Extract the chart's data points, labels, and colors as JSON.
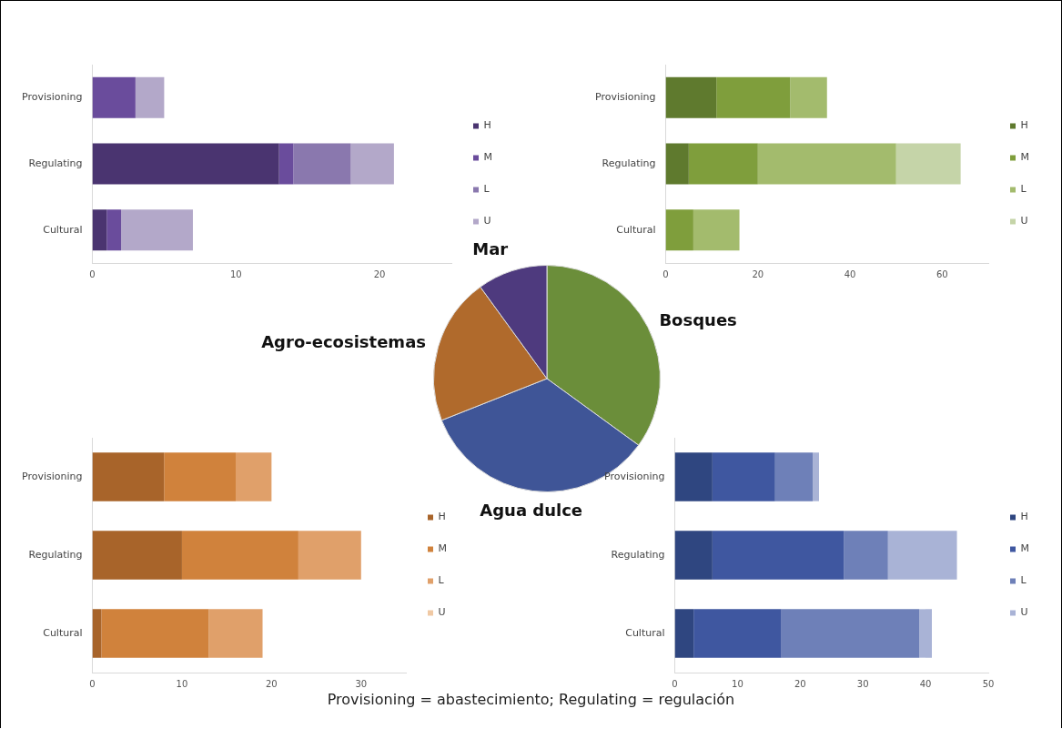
{
  "chart_data": [
    {
      "type": "pie",
      "categories": [
        "Bosques",
        "Agua dulce",
        "Agro-ecosistemas",
        "Mar"
      ],
      "values": [
        35,
        34,
        21,
        10
      ],
      "colors": [
        "#6b8e3a",
        "#3f5597",
        "#b06a2c",
        "#4e3a7e"
      ],
      "annotations": [
        "Provisioning = abastecimiento; Regulating = regulación"
      ]
    },
    {
      "type": "bar",
      "orientation": "horizontal",
      "stacked": true,
      "categories": [
        "Provisioning",
        "Regulating",
        "Cultural"
      ],
      "series": [
        {
          "name": "H",
          "color": "#4a3470",
          "values": [
            0,
            13,
            1
          ]
        },
        {
          "name": "M",
          "color": "#6a4c9c",
          "values": [
            3,
            1,
            1
          ]
        },
        {
          "name": "L",
          "color": "#8a78ae",
          "values": [
            0,
            4,
            0
          ]
        },
        {
          "name": "U",
          "color": "#b3a8c9",
          "values": [
            2,
            3,
            5
          ]
        }
      ],
      "xlim": [
        0,
        25
      ],
      "xticks": [
        0,
        10,
        20
      ],
      "grid": false,
      "legend": "right"
    },
    {
      "type": "bar",
      "orientation": "horizontal",
      "stacked": true,
      "categories": [
        "Provisioning",
        "Regulating",
        "Cultural"
      ],
      "series": [
        {
          "name": "H",
          "color": "#5f7a2e",
          "values": [
            11,
            5,
            0
          ]
        },
        {
          "name": "M",
          "color": "#7f9e3c",
          "values": [
            16,
            15,
            6
          ]
        },
        {
          "name": "L",
          "color": "#a3bb6d",
          "values": [
            8,
            30,
            10
          ]
        },
        {
          "name": "U",
          "color": "#c5d4a8",
          "values": [
            0,
            14,
            0
          ]
        }
      ],
      "xlim": [
        0,
        70
      ],
      "xticks": [
        0,
        20,
        40,
        60
      ],
      "grid": false,
      "legend": "right"
    },
    {
      "type": "bar",
      "orientation": "horizontal",
      "stacked": true,
      "categories": [
        "Provisioning",
        "Regulating",
        "Cultural"
      ],
      "series": [
        {
          "name": "H",
          "color": "#a8642a",
          "values": [
            8,
            10,
            1
          ]
        },
        {
          "name": "M",
          "color": "#d0823c",
          "values": [
            8,
            13,
            12
          ]
        },
        {
          "name": "L",
          "color": "#e0a06a",
          "values": [
            4,
            7,
            6
          ]
        },
        {
          "name": "U",
          "color": "#f0c9a4",
          "values": [
            0,
            0,
            0
          ]
        }
      ],
      "xlim": [
        0,
        35
      ],
      "xticks": [
        0,
        10,
        20,
        30
      ],
      "grid": false,
      "legend": "right"
    },
    {
      "type": "bar",
      "orientation": "horizontal",
      "stacked": true,
      "categories": [
        "Provisioning",
        "Regulating",
        "Cultural"
      ],
      "series": [
        {
          "name": "H",
          "color": "#2f4680",
          "values": [
            6,
            6,
            3
          ]
        },
        {
          "name": "M",
          "color": "#3f57a0",
          "values": [
            10,
            21,
            14
          ]
        },
        {
          "name": "L",
          "color": "#6e80b8",
          "values": [
            6,
            7,
            22
          ]
        },
        {
          "name": "U",
          "color": "#a9b3d6",
          "values": [
            1,
            11,
            2
          ]
        }
      ],
      "xlim": [
        0,
        50
      ],
      "xticks": [
        0,
        10,
        20,
        30,
        40,
        50
      ],
      "grid": false,
      "legend": "right"
    }
  ]
}
